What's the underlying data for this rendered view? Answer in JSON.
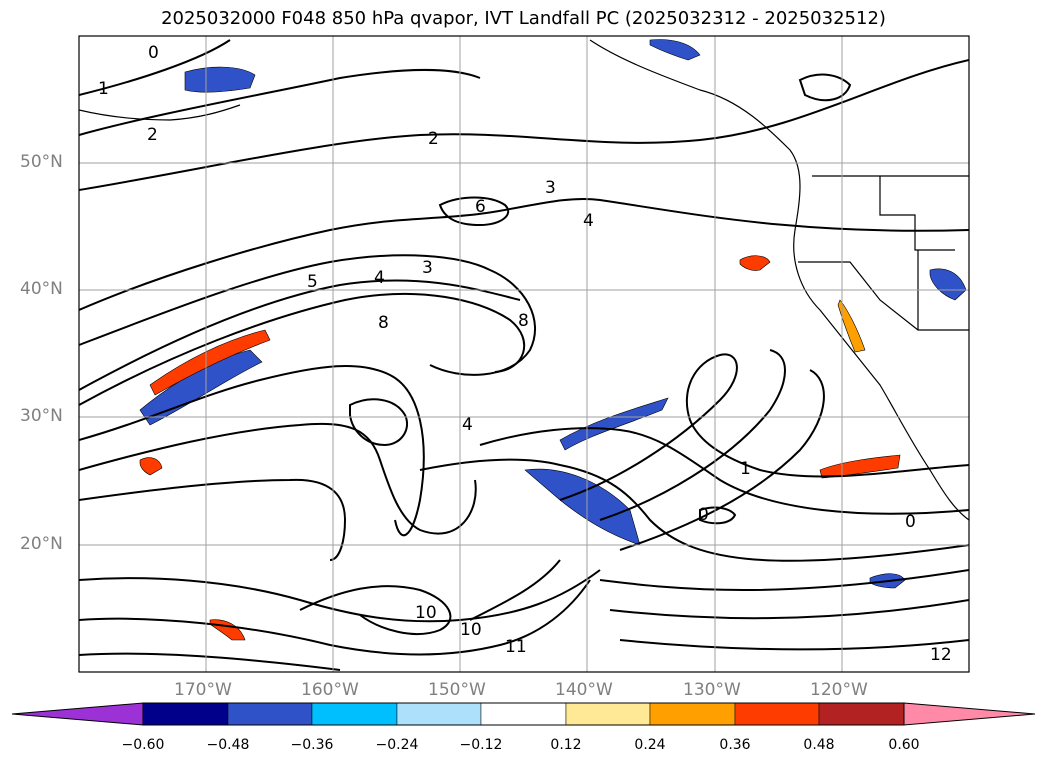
{
  "title": "2025032000 F048 850 hPa qvapor, IVT Landfall PC (2025032312 - 2025032512)",
  "lat_labels": [
    "50°N",
    "40°N",
    "30°N",
    "20°N"
  ],
  "lon_labels": [
    "170°W",
    "160°W",
    "150°W",
    "140°W",
    "130°W",
    "120°W"
  ],
  "colorbar": {
    "ticks": [
      "−0.60",
      "−0.48",
      "−0.36",
      "−0.24",
      "−0.12",
      "0.12",
      "0.24",
      "0.36",
      "0.48",
      "0.60"
    ],
    "colors": [
      "#9c31d6",
      "#00008b",
      "#2f52c9",
      "#00bfff",
      "#ade1fb",
      "#ffffff",
      "#ffe996",
      "#ffa000",
      "#ff3c00",
      "#b22222",
      "#ff8aa8"
    ]
  },
  "contour_labels": [
    "0",
    "1",
    "2",
    "2",
    "3",
    "3",
    "4",
    "4",
    "5",
    "6",
    "8",
    "8",
    "4",
    "1",
    "0",
    "0",
    "10",
    "10",
    "11",
    "12"
  ],
  "palette": {
    "contour": "#000000",
    "coast": "#000000",
    "grid": "#a0a0a0",
    "neg_fill": "#2f52c9",
    "neg_light": "#00bfff",
    "pos_fill": "#ff3c00",
    "pos_light": "#ffa000"
  }
}
